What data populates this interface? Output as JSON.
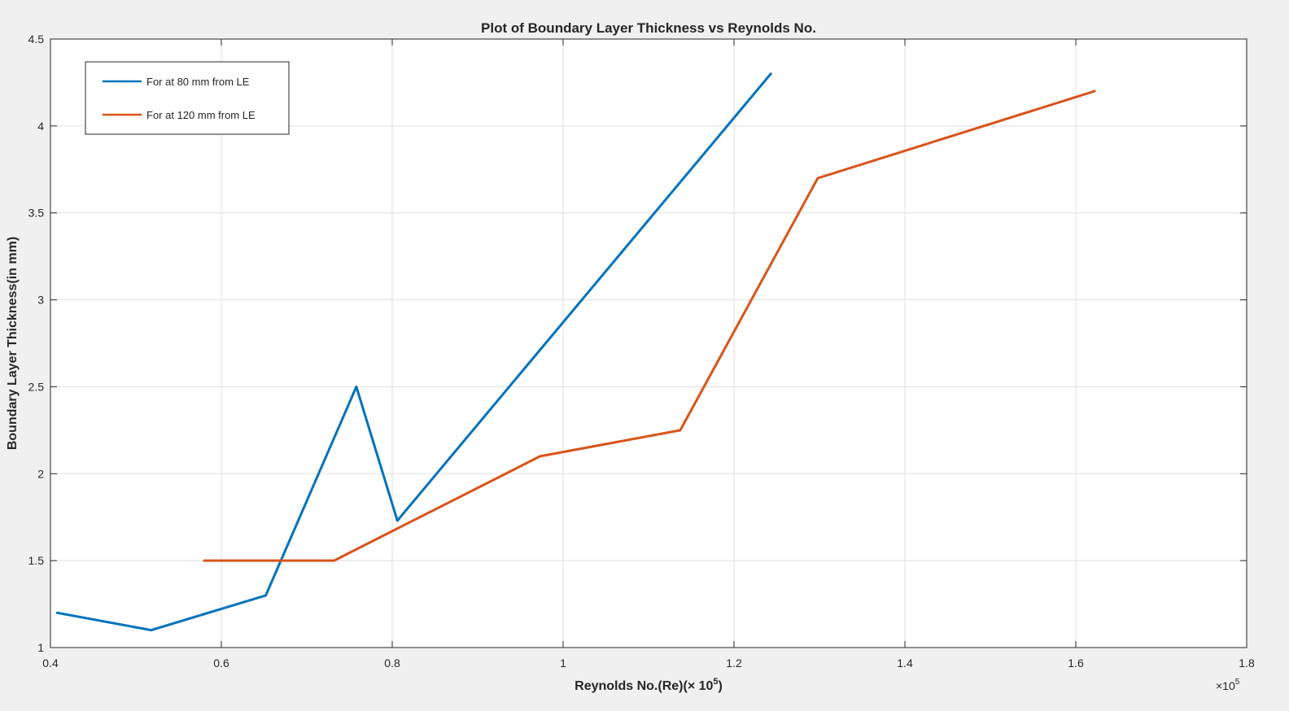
{
  "chart_data": {
    "type": "line",
    "title": "Plot of Boundary Layer Thickness vs Reynolds No.",
    "xlabel": "Reynolds No.(Re)(× 10",
    "xlabel_exp": "5",
    "xlabel_close": ")",
    "ylabel": "Boundary Layer Thickness(in mm)",
    "x_multiplier": "×10",
    "x_multiplier_exp": "5",
    "xlim": [
      0.4,
      1.8
    ],
    "ylim": [
      1,
      4.5
    ],
    "xticks": [
      "0.4",
      "0.6",
      "0.8",
      "1",
      "1.2",
      "1.4",
      "1.6",
      "1.8"
    ],
    "yticks": [
      "1",
      "1.5",
      "2",
      "2.5",
      "3",
      "3.5",
      "4",
      "4.5"
    ],
    "grid": true,
    "legend_position": "top-left",
    "series": [
      {
        "name": "For at 80 mm from LE",
        "color": "#0072BD",
        "x": [
          0.408,
          0.518,
          0.652,
          0.758,
          0.806,
          1.243
        ],
        "y": [
          1.2,
          1.1,
          1.3,
          2.5,
          1.73,
          4.3
        ]
      },
      {
        "name": "For at 120 mm from LE",
        "color": "#D95319",
        "x": [
          0.58,
          0.732,
          0.973,
          1.137,
          1.298,
          1.622
        ],
        "y": [
          1.5,
          1.5,
          2.1,
          2.25,
          3.7,
          4.2
        ]
      }
    ]
  }
}
